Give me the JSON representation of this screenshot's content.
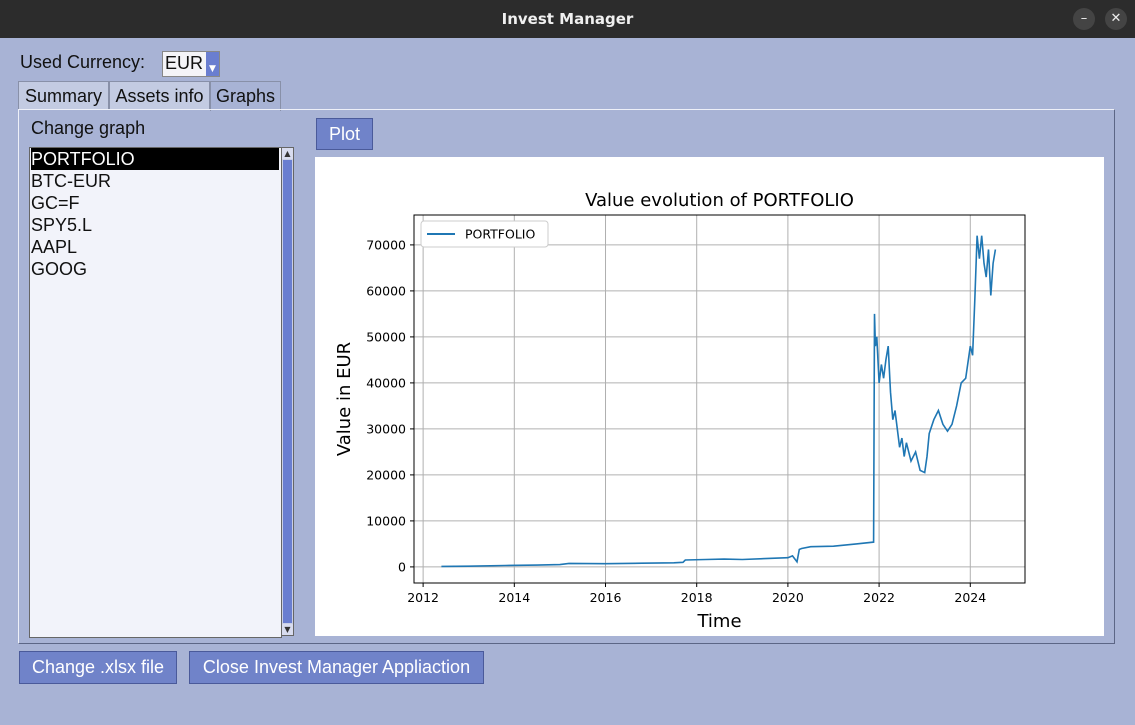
{
  "window": {
    "title": "Invest Manager",
    "minimize_glyph": "–",
    "close_glyph": "✕"
  },
  "currency": {
    "label": "Used Currency:",
    "value": "EUR"
  },
  "tabs": [
    {
      "label": "Summary"
    },
    {
      "label": "Assets info"
    },
    {
      "label": "Graphs"
    }
  ],
  "graphs": {
    "change_label": "Change graph",
    "plot_button": "Plot",
    "assets": [
      "PORTFOLIO",
      "BTC-EUR",
      "GC=F",
      "SPY5.L",
      "AAPL",
      "GOOG"
    ],
    "selected_index": 0
  },
  "footer": {
    "change_file_button": "Change .xlsx file",
    "close_button": "Close Invest Manager Appliaction"
  },
  "chart_data": {
    "type": "line",
    "title": "Value evolution of PORTFOLIO",
    "xlabel": "Time",
    "ylabel": "Value in EUR",
    "xlim": [
      2011.8,
      2025.2
    ],
    "ylim": [
      -3500,
      76500
    ],
    "xticks": [
      2012,
      2014,
      2016,
      2018,
      2020,
      2022,
      2024
    ],
    "yticks": [
      0,
      10000,
      20000,
      30000,
      40000,
      50000,
      60000,
      70000
    ],
    "grid": true,
    "legend_position": "upper-left",
    "color": "#1f77b4",
    "series": [
      {
        "name": "PORTFOLIO",
        "x": [
          2012.4,
          2013.0,
          2013.8,
          2014.5,
          2015.0,
          2015.2,
          2016.0,
          2016.8,
          2017.5,
          2017.7,
          2017.75,
          2018.2,
          2018.6,
          2019.0,
          2019.5,
          2020.0,
          2020.1,
          2020.2,
          2020.25,
          2020.3,
          2020.5,
          2021.0,
          2021.5,
          2021.88,
          2021.9,
          2021.92,
          2021.95,
          2022.0,
          2022.05,
          2022.1,
          2022.15,
          2022.2,
          2022.25,
          2022.3,
          2022.35,
          2022.4,
          2022.45,
          2022.5,
          2022.55,
          2022.6,
          2022.7,
          2022.8,
          2022.9,
          2023.0,
          2023.05,
          2023.1,
          2023.2,
          2023.3,
          2023.4,
          2023.5,
          2023.6,
          2023.7,
          2023.8,
          2023.9,
          2024.0,
          2024.05,
          2024.1,
          2024.15,
          2024.2,
          2024.25,
          2024.3,
          2024.35,
          2024.4,
          2024.45,
          2024.5,
          2024.55
        ],
        "y": [
          100,
          150,
          300,
          400,
          500,
          750,
          700,
          800,
          900,
          1000,
          1500,
          1600,
          1700,
          1600,
          1800,
          2000,
          2400,
          1100,
          3800,
          4000,
          4400,
          4500,
          5000,
          5400,
          55000,
          48000,
          50000,
          40000,
          44000,
          41000,
          45000,
          48000,
          38000,
          32000,
          34000,
          30000,
          26000,
          28000,
          24000,
          27000,
          23000,
          25000,
          21000,
          20500,
          24000,
          29000,
          32000,
          34000,
          31000,
          29500,
          31000,
          35000,
          40000,
          41000,
          48000,
          46000,
          58000,
          72000,
          67000,
          72000,
          66000,
          63000,
          69000,
          59000,
          66000,
          69000
        ]
      }
    ]
  }
}
